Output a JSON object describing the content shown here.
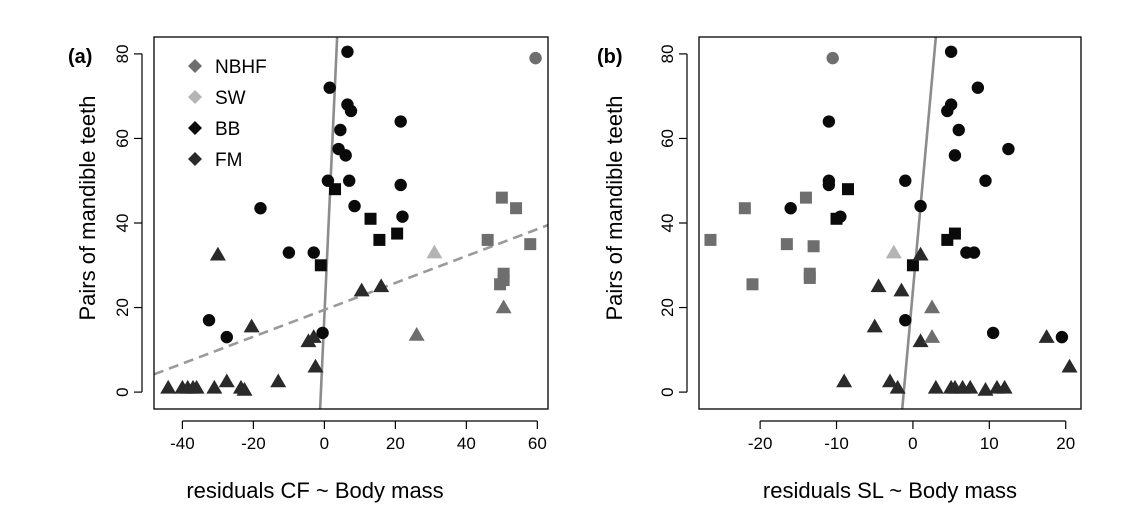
{
  "colors": {
    "NBHF": "#6e6e6e",
    "SW": "#b4b4b4",
    "BB": "#0a0a0a",
    "FM": "#2a2a2a",
    "fit_solid": "#8c8c8c",
    "fit_dashed": "#9a9a9a"
  },
  "chart_data": [
    {
      "type": "scatter",
      "panel_label": "(a)",
      "xlabel": "residuals CF ~ Body mass",
      "ylabel": "Pairs of mandible teeth",
      "xlim": [
        -48,
        63
      ],
      "ylim": [
        -4,
        84
      ],
      "xticks": [
        -40,
        -20,
        0,
        20,
        40,
        60
      ],
      "yticks": [
        0,
        20,
        40,
        60,
        80
      ],
      "legend": {
        "position": "top-left",
        "entries": [
          {
            "label": "NBHF",
            "group": "NBHF"
          },
          {
            "label": "SW",
            "group": "SW"
          },
          {
            "label": "BB",
            "group": "BB"
          },
          {
            "label": "FM",
            "group": "FM"
          }
        ]
      },
      "lines": [
        {
          "style": "solid",
          "x": [
            -1.2,
            3.6
          ],
          "y": [
            -4,
            84
          ]
        },
        {
          "style": "dashed",
          "x": [
            -48,
            63
          ],
          "y": [
            4.2,
            39.5
          ]
        }
      ],
      "series": [
        {
          "name": "circle-NBHF",
          "group": "NBHF",
          "marker": "circle",
          "points": [
            [
              59.5,
              79
            ]
          ]
        },
        {
          "name": "circle-BB",
          "group": "BB",
          "marker": "circle",
          "points": [
            [
              6.5,
              80.5
            ],
            [
              1.5,
              72
            ],
            [
              6.5,
              68
            ],
            [
              7.5,
              66.5
            ],
            [
              4.5,
              62
            ],
            [
              21.5,
              64
            ],
            [
              4,
              57.5
            ],
            [
              6,
              56
            ],
            [
              1,
              50
            ],
            [
              7,
              50
            ],
            [
              21.5,
              49
            ],
            [
              8.5,
              44
            ],
            [
              -18,
              43.5
            ],
            [
              22,
              41.5
            ],
            [
              -10,
              33
            ],
            [
              -3,
              33
            ],
            [
              -32.5,
              17
            ],
            [
              -27.5,
              13
            ],
            [
              -0.5,
              14
            ]
          ]
        },
        {
          "name": "square-BB",
          "group": "BB",
          "marker": "square",
          "points": [
            [
              3,
              48
            ],
            [
              13,
              41
            ],
            [
              -1,
              30
            ],
            [
              15.5,
              36
            ],
            [
              20.5,
              37.5
            ]
          ]
        },
        {
          "name": "square-NBHF",
          "group": "NBHF",
          "marker": "square",
          "points": [
            [
              50,
              46
            ],
            [
              54,
              43.5
            ],
            [
              46,
              36
            ],
            [
              58,
              35
            ],
            [
              50.5,
              28
            ],
            [
              50.5,
              26.5
            ],
            [
              49.5,
              25.5
            ]
          ]
        },
        {
          "name": "triangle-FM",
          "group": "FM",
          "marker": "triangle",
          "points": [
            [
              -30,
              32.5
            ],
            [
              -20.5,
              15.5
            ],
            [
              10.5,
              24
            ],
            [
              16,
              25
            ],
            [
              -4.5,
              12
            ],
            [
              -3,
              13
            ],
            [
              -2.5,
              6
            ],
            [
              -13,
              2.5
            ],
            [
              -27.5,
              2.5
            ],
            [
              -44,
              1
            ],
            [
              -40,
              1
            ],
            [
              -38.5,
              1
            ],
            [
              -37,
              1
            ],
            [
              -36,
              1
            ],
            [
              -31,
              1
            ],
            [
              -23.5,
              1
            ],
            [
              -22.5,
              0.5
            ]
          ]
        },
        {
          "name": "triangle-NBHF",
          "group": "NBHF",
          "marker": "triangle",
          "points": [
            [
              26,
              13.5
            ],
            [
              50.5,
              20
            ]
          ]
        },
        {
          "name": "triangle-SW",
          "group": "SW",
          "marker": "triangle",
          "points": [
            [
              31,
              33
            ]
          ]
        }
      ]
    },
    {
      "type": "scatter",
      "panel_label": "(b)",
      "xlabel": "residuals SL ~ Body mass",
      "ylabel": "Pairs of mandible teeth",
      "xlim": [
        -28,
        22
      ],
      "ylim": [
        -4,
        84
      ],
      "xticks": [
        -20,
        -10,
        0,
        10,
        20
      ],
      "yticks": [
        0,
        20,
        40,
        60,
        80
      ],
      "lines": [
        {
          "style": "solid",
          "x": [
            -1.4,
            3
          ],
          "y": [
            -4,
            84
          ]
        }
      ],
      "series": [
        {
          "name": "circle-NBHF",
          "group": "NBHF",
          "marker": "circle",
          "points": [
            [
              -10.5,
              79
            ]
          ]
        },
        {
          "name": "circle-BB",
          "group": "BB",
          "marker": "circle",
          "points": [
            [
              5,
              80.5
            ],
            [
              8.5,
              72
            ],
            [
              5,
              68
            ],
            [
              4.5,
              66.5
            ],
            [
              6,
              62
            ],
            [
              -11,
              64
            ],
            [
              12.5,
              57.5
            ],
            [
              5.5,
              56
            ],
            [
              -1,
              50
            ],
            [
              9.5,
              50
            ],
            [
              -11,
              50
            ],
            [
              -11,
              49
            ],
            [
              1,
              44
            ],
            [
              -16,
              43.5
            ],
            [
              -9.5,
              41.5
            ],
            [
              7,
              33
            ],
            [
              8,
              33
            ],
            [
              -1,
              17
            ],
            [
              10.5,
              14
            ],
            [
              19.5,
              13
            ]
          ]
        },
        {
          "name": "square-BB",
          "group": "BB",
          "marker": "square",
          "points": [
            [
              -8.5,
              48
            ],
            [
              -10,
              41
            ],
            [
              0,
              30
            ],
            [
              4.5,
              36
            ],
            [
              5.5,
              37.5
            ]
          ]
        },
        {
          "name": "square-NBHF",
          "group": "NBHF",
          "marker": "square",
          "points": [
            [
              -14,
              46
            ],
            [
              -22,
              43.5
            ],
            [
              -26.5,
              36
            ],
            [
              -16.5,
              35
            ],
            [
              -13,
              34.5
            ],
            [
              -13.5,
              28
            ],
            [
              -13.5,
              27
            ],
            [
              -21,
              25.5
            ]
          ]
        },
        {
          "name": "triangle-FM",
          "group": "FM",
          "marker": "triangle",
          "points": [
            [
              1,
              32.5
            ],
            [
              -4.5,
              25
            ],
            [
              -1.5,
              24
            ],
            [
              -5,
              15.5
            ],
            [
              1,
              12
            ],
            [
              17.5,
              13
            ],
            [
              20.5,
              6
            ],
            [
              -9,
              2.5
            ],
            [
              -3,
              2.5
            ],
            [
              -2,
              1
            ],
            [
              3,
              1
            ],
            [
              5,
              1
            ],
            [
              5.5,
              1
            ],
            [
              6.5,
              1
            ],
            [
              7.5,
              1
            ],
            [
              9.5,
              0.5
            ],
            [
              11,
              1
            ],
            [
              12,
              1
            ]
          ]
        },
        {
          "name": "triangle-NBHF",
          "group": "NBHF",
          "marker": "triangle",
          "points": [
            [
              2.5,
              20
            ],
            [
              2.5,
              13
            ]
          ]
        },
        {
          "name": "triangle-SW",
          "group": "SW",
          "marker": "triangle",
          "points": [
            [
              -2.5,
              33
            ]
          ]
        }
      ]
    }
  ]
}
